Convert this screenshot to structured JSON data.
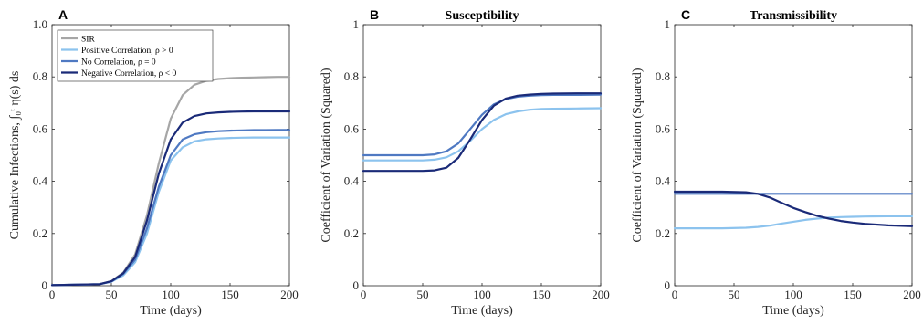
{
  "colors": {
    "sir": "#a6a6a6",
    "positive": "#8cc3ee",
    "none": "#4f79c2",
    "negative": "#1a2a78",
    "axis": "#262626"
  },
  "chart_data": [
    {
      "type": "line",
      "panel_letter": "A",
      "title": "",
      "xlabel": "Time (days)",
      "ylabel": "Cumulative Infections, ∫₀ᵗ η(s) ds",
      "xlim": [
        0,
        200
      ],
      "ylim": [
        0,
        1
      ],
      "xticks": [
        "0",
        "50",
        "100",
        "150",
        "200"
      ],
      "yticks": [
        "0",
        "0.2",
        "0.4",
        "0.6",
        "0.8",
        "1.0"
      ],
      "grid": false,
      "legend": "top-left",
      "series": [
        {
          "key": "sir",
          "name": "SIR",
          "x": [
            0,
            40,
            50,
            60,
            70,
            80,
            90,
            100,
            110,
            120,
            130,
            140,
            150,
            160,
            170,
            180,
            190,
            200
          ],
          "y": [
            0.002,
            0.006,
            0.018,
            0.05,
            0.12,
            0.27,
            0.47,
            0.64,
            0.73,
            0.77,
            0.785,
            0.792,
            0.795,
            0.797,
            0.798,
            0.799,
            0.8,
            0.8
          ]
        },
        {
          "key": "positive",
          "name": "Positive Correlation, ρ > 0",
          "x": [
            0,
            40,
            50,
            60,
            70,
            80,
            90,
            100,
            110,
            120,
            130,
            140,
            150,
            160,
            170,
            180,
            190,
            200
          ],
          "y": [
            0.002,
            0.006,
            0.015,
            0.04,
            0.09,
            0.2,
            0.36,
            0.48,
            0.53,
            0.553,
            0.561,
            0.564,
            0.566,
            0.567,
            0.568,
            0.568,
            0.568,
            0.568
          ]
        },
        {
          "key": "none",
          "name": "No Correlation, ρ = 0",
          "x": [
            0,
            40,
            50,
            60,
            70,
            80,
            90,
            100,
            110,
            120,
            130,
            140,
            150,
            160,
            170,
            180,
            190,
            200
          ],
          "y": [
            0.002,
            0.006,
            0.016,
            0.045,
            0.1,
            0.22,
            0.38,
            0.5,
            0.56,
            0.58,
            0.588,
            0.592,
            0.594,
            0.595,
            0.596,
            0.596,
            0.597,
            0.597
          ]
        },
        {
          "key": "negative",
          "name": "Negative Correlation, ρ < 0",
          "x": [
            0,
            40,
            50,
            60,
            70,
            80,
            90,
            100,
            110,
            120,
            130,
            140,
            150,
            160,
            170,
            180,
            190,
            200
          ],
          "y": [
            0.002,
            0.006,
            0.017,
            0.048,
            0.11,
            0.25,
            0.43,
            0.56,
            0.625,
            0.65,
            0.66,
            0.664,
            0.666,
            0.667,
            0.668,
            0.668,
            0.668,
            0.668
          ]
        }
      ]
    },
    {
      "type": "line",
      "panel_letter": "B",
      "title": "Susceptibility",
      "xlabel": "Time (days)",
      "ylabel": "Coefficient of Variation (Squared)",
      "xlim": [
        0,
        200
      ],
      "ylim": [
        0,
        1
      ],
      "xticks": [
        "0",
        "50",
        "100",
        "150",
        "200"
      ],
      "yticks": [
        "0",
        "0.2",
        "0.4",
        "0.6",
        "0.8",
        "1"
      ],
      "grid": false,
      "series": [
        {
          "key": "positive",
          "x": [
            0,
            50,
            60,
            70,
            80,
            90,
            100,
            110,
            120,
            130,
            140,
            150,
            160,
            180,
            200
          ],
          "y": [
            0.48,
            0.48,
            0.483,
            0.492,
            0.515,
            0.555,
            0.6,
            0.635,
            0.657,
            0.668,
            0.674,
            0.677,
            0.678,
            0.679,
            0.68
          ]
        },
        {
          "key": "none",
          "x": [
            0,
            50,
            60,
            70,
            80,
            90,
            100,
            110,
            120,
            130,
            140,
            150,
            160,
            180,
            200
          ],
          "y": [
            0.5,
            0.5,
            0.503,
            0.515,
            0.545,
            0.6,
            0.655,
            0.695,
            0.715,
            0.724,
            0.728,
            0.73,
            0.731,
            0.731,
            0.732
          ]
        },
        {
          "key": "negative",
          "x": [
            0,
            50,
            60,
            70,
            80,
            90,
            100,
            110,
            120,
            130,
            140,
            150,
            160,
            180,
            200
          ],
          "y": [
            0.44,
            0.44,
            0.442,
            0.452,
            0.49,
            0.56,
            0.635,
            0.69,
            0.717,
            0.728,
            0.732,
            0.735,
            0.736,
            0.737,
            0.737
          ]
        }
      ]
    },
    {
      "type": "line",
      "panel_letter": "C",
      "title": "Transmissibility",
      "xlabel": "Time (days)",
      "ylabel": "Coefficient of Variation (Squared)",
      "xlim": [
        0,
        200
      ],
      "ylim": [
        0,
        1
      ],
      "xticks": [
        "0",
        "50",
        "100",
        "150",
        "200"
      ],
      "yticks": [
        "0",
        "0.2",
        "0.4",
        "0.6",
        "0.8",
        "1"
      ],
      "grid": false,
      "series": [
        {
          "key": "positive",
          "x": [
            0,
            40,
            60,
            70,
            80,
            90,
            100,
            110,
            120,
            130,
            140,
            150,
            160,
            180,
            200
          ],
          "y": [
            0.22,
            0.22,
            0.222,
            0.225,
            0.23,
            0.238,
            0.245,
            0.252,
            0.257,
            0.261,
            0.263,
            0.264,
            0.265,
            0.266,
            0.266
          ]
        },
        {
          "key": "none",
          "x": [
            0,
            50,
            100,
            150,
            200
          ],
          "y": [
            0.352,
            0.352,
            0.352,
            0.352,
            0.352
          ]
        },
        {
          "key": "negative",
          "x": [
            0,
            40,
            60,
            70,
            80,
            90,
            100,
            110,
            120,
            130,
            140,
            150,
            160,
            180,
            200
          ],
          "y": [
            0.36,
            0.36,
            0.358,
            0.352,
            0.338,
            0.318,
            0.298,
            0.282,
            0.268,
            0.257,
            0.248,
            0.242,
            0.237,
            0.231,
            0.228
          ]
        }
      ]
    }
  ]
}
